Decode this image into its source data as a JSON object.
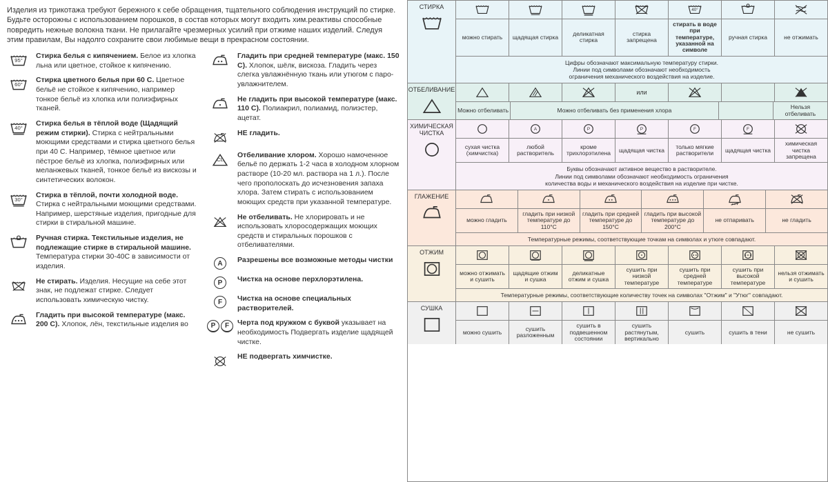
{
  "intro": "Изделия из трикотажа требуют бережного к себе обращения, тщательного соблюдения инструкций по стирке. Будьте осторожны с использованием порошков, в состав которых могут входить хим.реактивы способные повредить нежные волокна ткани. Не прилагайте чрезмерных усилий при отжиме наших изделий. Следуя этим правилам, Вы надолго сохраните свои любимые вещи в прекрасном состоянии.",
  "left_col1": [
    {
      "icon": "wash95",
      "title": "Стирка белья с кипячением.",
      "text": "Белое из хлопка льна или цветное, стойкое к кипячению."
    },
    {
      "icon": "wash60",
      "title": "Стирка цветного белья при 60 С.",
      "text": "Цветное бельё не стойкое к кипячению, например тонкое бельё из хлопка или полиэфирных тканей."
    },
    {
      "icon": "wash40u",
      "title": "Стирка белья в тёплой воде (Щадящий режим стирки).",
      "text": "Стирка с нейтральными моющими средствами и стирка цветного белья при 40 С. Например, тёмное цветное или пёстрое бельё из хлопка, полиэфирных или меланжевых тканей, тонкое бельё из вискозы и синтетических волокон."
    },
    {
      "icon": "wash30u",
      "title": "Стирка в тёплой, почти холодной воде.",
      "text": "Стирка с нейтральными моющими средствами. Например, шерстяные изделия, пригодные для стирки в стиральной машине."
    },
    {
      "icon": "hand",
      "title": "Ручная стирка. Текстильные изделия, не подлежащие стирке в стиральной машине.",
      "text": "Температура стирки 30-40С в зависимости от изделия."
    },
    {
      "icon": "nowash",
      "title": "Не стирать.",
      "text": "Изделия. Несущие на себе этот знак, не подлежат стирке. Следует использовать химическую чистку."
    },
    {
      "icon": "iron3",
      "title": "Гладить при высокой температуре (макс. 200 С).",
      "text": "Хлопок, лён, текстильные изделия во"
    }
  ],
  "left_col2": [
    {
      "icon": "iron2",
      "title": "Гладить при средней температуре (макс. 150 С).",
      "text": "Хлопок, шёлк, вискоза. Гладить через слегка увлажнённую ткань или утюгом с паро-увлажнителем."
    },
    {
      "icon": "iron1",
      "title": "Не гладить при высокой температуре (макс. 110 С).",
      "text": "Полиакрил, полиамид, полиэстер, ацетат."
    },
    {
      "icon": "noiron",
      "title": "НЕ гладить.",
      "text": ""
    },
    {
      "icon": "bleachcl",
      "title": "Отбеливание хлором.",
      "text": "Хорошо намоченное бельё по держать 1-2 часа в холодном хлорном растворе (10-20 мл. раствора на 1 л.). После чего прополоскать до исчезновения запаха хлора. Затем стирать с использованием моющих средств при указанной температуре."
    },
    {
      "icon": "nobleach",
      "title": "Не отбеливать.",
      "text": "Не хлорировать и не использовать хлоросодержащих моющих средств и стиральных порошков с отбеливателями."
    },
    {
      "icon": "circA",
      "title": "Разрешены все возможные методы чистки",
      "text": ""
    },
    {
      "icon": "circP",
      "title": "Чистка на основе перхлорэтилена.",
      "text": ""
    },
    {
      "icon": "circF",
      "title": "Чистка на основе специальных растворителей.",
      "text": ""
    },
    {
      "icon": "circPF",
      "title": "Черта под кружком с буквой",
      "text": "указывает на необходимость Подвергать изделие щадящей чистке."
    },
    {
      "icon": "nodry",
      "title": "НЕ подвергать химчистке.",
      "text": ""
    }
  ],
  "sections": [
    {
      "name": "СТИРКА",
      "bg": "bg1",
      "hicon": "wash",
      "icons": [
        "wash",
        "washu",
        "washuu",
        "nowash",
        "washt",
        "hand",
        "notwist"
      ],
      "labels": [
        {
          "t": "можно стирать",
          "w": 1
        },
        {
          "t": "щадящая стирка",
          "w": 1
        },
        {
          "t": "деликатная стирка",
          "w": 1
        },
        {
          "t": "стирка запрещена",
          "w": 1
        },
        {
          "t": "стирать в воде при температуре, указанной на символе",
          "w": 1,
          "bold": true
        },
        {
          "t": "ручная стирка",
          "w": 1
        },
        {
          "t": "не отжимать",
          "w": 1
        }
      ],
      "note": "Цифры обозначают максимальную температуру стирки.\nЛинии под символами обозначают необходимость\nограничения механического воздействия на изделие."
    },
    {
      "name": "ОТБЕЛИВАНИЕ",
      "bg": "bg2",
      "hicon": "tri",
      "icons_row": [
        {
          "i": "tri",
          "w": 1
        },
        {
          "i": "tri2",
          "w": 1
        },
        {
          "i": "tricross",
          "w": 1
        },
        {
          "t": "или",
          "w": 1
        },
        {
          "i": "notri",
          "w": 1
        },
        {
          "i": "",
          "w": 1
        },
        {
          "i": "notrifill",
          "w": 1
        }
      ],
      "labels": [
        {
          "t": "Можно отбеливать",
          "w": 1
        },
        {
          "t": "Можно отбеливать без применения хлора",
          "w": 4
        },
        {
          "t": "",
          "w": 1
        },
        {
          "t": "Нельзя отбеливать",
          "w": 1
        }
      ]
    },
    {
      "name": "ХИМИЧЕСКАЯ ЧИСТКА",
      "bg": "bg3",
      "hicon": "circ",
      "icons": [
        "circ",
        "circA_s",
        "circP_s",
        "circPu",
        "circF_s",
        "circFu",
        "nocirc"
      ],
      "labels": [
        {
          "t": "сухая чистка (химчистка)",
          "w": 1
        },
        {
          "t": "любой растворитель",
          "w": 1
        },
        {
          "t": "кроме трихлорэтилена",
          "w": 1
        },
        {
          "t": "щадящая чистка",
          "w": 1
        },
        {
          "t": "только мягкие растворители",
          "w": 1
        },
        {
          "t": "щадящая чистка",
          "w": 1
        },
        {
          "t": "химическая чистка запрещена",
          "w": 1
        }
      ],
      "note": "Буквы обозначают активное вещество в растворителе.\nЛинии под символами обозначают необходимость ограничения\nколичества воды и механического воздействия на изделие при чистке."
    },
    {
      "name": "ГЛАЖЕНИЕ",
      "bg": "bg4",
      "hicon": "iron",
      "icons": [
        "iron",
        "iron1s",
        "iron2s",
        "iron3s",
        "nosteam",
        "noiron_s"
      ],
      "labels": [
        {
          "t": "можно гладить",
          "w": 1
        },
        {
          "t": "гладить при низкой температуре до 110°С",
          "w": 1
        },
        {
          "t": "гладить при средней температуре до 150°С",
          "w": 1
        },
        {
          "t": "гладить при высокой температуре до 200°С",
          "w": 1
        },
        {
          "t": "не отпаривать",
          "w": 1
        },
        {
          "t": "не гладить",
          "w": 1
        }
      ],
      "note": "Температурные режимы, соответствующие точкам на символах и утюге совпадают."
    },
    {
      "name": "ОТЖИМ",
      "bg": "bg5",
      "hicon": "sq",
      "icons": [
        "sq",
        "squ",
        "squu",
        "sq1",
        "sq2",
        "sq3",
        "nosq"
      ],
      "labels": [
        {
          "t": "можно отжимать и сушить",
          "w": 1
        },
        {
          "t": "щадящие отжим и сушка",
          "w": 1
        },
        {
          "t": "деликатные отжим и сушка",
          "w": 1
        },
        {
          "t": "сушить при низкой температуре",
          "w": 1
        },
        {
          "t": "сушить при средней температуре",
          "w": 1
        },
        {
          "t": "сушить при высокой температуре",
          "w": 1
        },
        {
          "t": "нельзя отжимать и сушить",
          "w": 1
        }
      ],
      "note": "Температурные режимы, соответствующие количеству точек на символах \"Отжим\" и \"Утюг\" совпадают."
    },
    {
      "name": "СУШКА",
      "bg": "bg6",
      "hicon": "sqp",
      "icons": [
        "sqp",
        "sqh",
        "sqv",
        "sqvv",
        "sqcurve",
        "sqdiag",
        "nosqp"
      ],
      "labels": [
        {
          "t": "можно сушить",
          "w": 1
        },
        {
          "t": "сушить разложенным",
          "w": 1
        },
        {
          "t": "сушить в подвешенном состоянии",
          "w": 1
        },
        {
          "t": "сушить растянутым, вертикально",
          "w": 1
        },
        {
          "t": "сушить",
          "w": 1
        },
        {
          "t": "сушить в тени",
          "w": 1
        },
        {
          "t": "не сушить",
          "w": 1
        }
      ]
    }
  ],
  "colors": {
    "stroke": "#333"
  }
}
